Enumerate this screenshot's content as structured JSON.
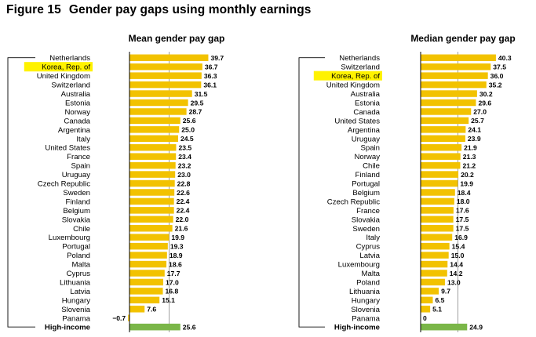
{
  "figure": {
    "label": "Figure 15",
    "title": "Gender pay gaps using monthly earnings"
  },
  "colors": {
    "bar": "#f2c200",
    "summary_bar": "#7ab648",
    "highlight": "#fff200",
    "axis": "#000000",
    "grid": "#888888"
  },
  "chart_data": [
    {
      "type": "bar",
      "orientation": "horizontal",
      "title": "Mean gender pay gap",
      "xlabel": "",
      "ylabel": "",
      "highlight": [
        "Korea, Rep. of"
      ],
      "summary": "High-income",
      "categories": [
        "Netherlands",
        "Korea, Rep. of",
        "United Kingdom",
        "Switzerland",
        "Australia",
        "Estonia",
        "Norway",
        "Canada",
        "Argentina",
        "Italy",
        "United States",
        "France",
        "Spain",
        "Uruguay",
        "Czech Republic",
        "Sweden",
        "Finland",
        "Belgium",
        "Slovakia",
        "Chile",
        "Luxembourg",
        "Portugal",
        "Poland",
        "Malta",
        "Cyprus",
        "Lithuania",
        "Latvia",
        "Hungary",
        "Slovenia",
        "Panama",
        "High-income"
      ],
      "values": [
        39.7,
        36.7,
        36.3,
        36.1,
        31.5,
        29.5,
        28.7,
        25.6,
        25.0,
        24.5,
        23.5,
        23.4,
        23.2,
        23.0,
        22.8,
        22.6,
        22.4,
        22.4,
        22.0,
        21.6,
        19.9,
        19.3,
        18.9,
        18.6,
        17.7,
        17.0,
        16.8,
        15.1,
        7.6,
        -0.7,
        25.6
      ],
      "value_labels": [
        "39.7",
        "36.7",
        "36.3",
        "36.1",
        "31.5",
        "29.5",
        "28.7",
        "25.6",
        "25.0",
        "24.5",
        "23.5",
        "23.4",
        "23.2",
        "23.0",
        "22.8",
        "22.6",
        "22.4",
        "22.4",
        "22.0",
        "21.6",
        "19.9",
        "19.3",
        "18.9",
        "18.6",
        "17.7",
        "17.0",
        "16.8",
        "15.1",
        "7.6",
        "−0.7",
        "25.6"
      ],
      "xlim": [
        -2,
        42
      ],
      "gridlines": [
        0,
        20
      ]
    },
    {
      "type": "bar",
      "orientation": "horizontal",
      "title": "Median gender pay gap",
      "xlabel": "",
      "ylabel": "",
      "highlight": [
        "Korea, Rep. of"
      ],
      "summary": "High-income",
      "categories": [
        "Netherlands",
        "Switzerland",
        "Korea, Rep. of",
        "United Kingdom",
        "Australia",
        "Estonia",
        "Canada",
        "United States",
        "Argentina",
        "Uruguay",
        "Spain",
        "Norway",
        "Chile",
        "Finland",
        "Portugal",
        "Belgium",
        "Czech Republic",
        "France",
        "Slovakia",
        "Sweden",
        "Italy",
        "Cyprus",
        "Latvia",
        "Luxembourg",
        "Malta",
        "Poland",
        "Lithuania",
        "Hungary",
        "Slovenia",
        "Panama",
        "High-income"
      ],
      "values": [
        40.3,
        37.5,
        36.0,
        35.2,
        30.2,
        29.6,
        27.0,
        25.7,
        24.1,
        23.9,
        21.9,
        21.3,
        21.2,
        20.2,
        19.9,
        18.4,
        18.0,
        17.6,
        17.5,
        17.5,
        16.9,
        15.4,
        15.0,
        14.4,
        14.2,
        13.0,
        9.7,
        6.5,
        5.1,
        0,
        24.9
      ],
      "value_labels": [
        "40.3",
        "37.5",
        "36.0",
        "35.2",
        "30.2",
        "29.6",
        "27.0",
        "25.7",
        "24.1",
        "23.9",
        "21.9",
        "21.3",
        "21.2",
        "20.2",
        "19.9",
        "18.4",
        "18.0",
        "17.6",
        "17.5",
        "17.5",
        "16.9",
        "15.4",
        "15.0",
        "14.4",
        "14.2",
        "13.0",
        "9.7",
        "6.5",
        "5.1",
        "0",
        "24.9"
      ],
      "xlim": [
        -2,
        42
      ],
      "gridlines": [
        0,
        20
      ]
    }
  ]
}
